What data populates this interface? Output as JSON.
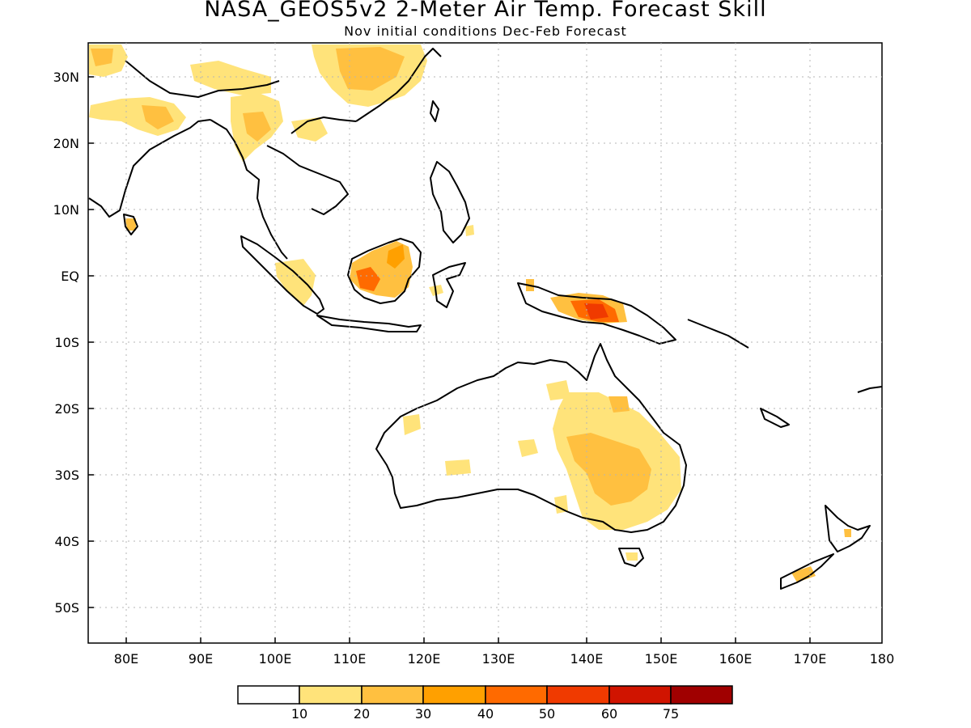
{
  "title": "NASA_GEOS5v2 2-Meter Air Temp. Forecast Skill",
  "subtitle": "Nov initial conditions  Dec-Feb Forecast",
  "map": {
    "lon_labels": [
      "80E",
      "90E",
      "100E",
      "110E",
      "120E",
      "130E",
      "140E",
      "150E",
      "160E",
      "170E",
      "180"
    ],
    "lat_labels": [
      "30N",
      "20N",
      "10N",
      "EQ",
      "10S",
      "20S",
      "30S",
      "40S",
      "50S"
    ],
    "grid": true
  },
  "colorbar": {
    "colors": [
      "#ffffff",
      "#ffe37a",
      "#ffc040",
      "#ffa000",
      "#ff6a00",
      "#f03a00",
      "#d01400",
      "#a00000"
    ],
    "tick_labels": [
      "10",
      "20",
      "30",
      "40",
      "50",
      "60",
      "75"
    ]
  }
}
